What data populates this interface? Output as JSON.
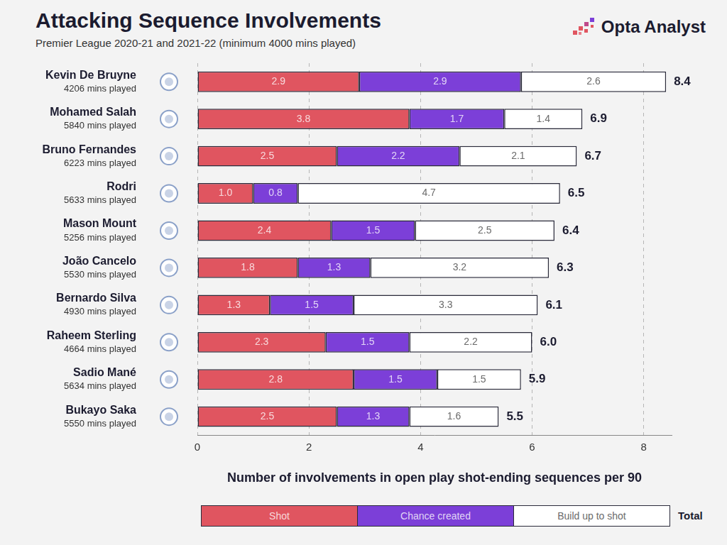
{
  "chart_data": {
    "type": "bar",
    "orientation": "horizontal",
    "stacked": true,
    "data_labels": true,
    "grid": true,
    "legend": "bottom",
    "title": "Attacking Sequence Involvements",
    "subtitle": "Premier League 2020-21 and 2021-22 (minimum 4000 mins played)",
    "source": "Opta Analyst",
    "x_label": "Number of involvements in open play shot-ending sequences per 90",
    "categories": [
      "Kevin De Bruyne",
      "Mohamed Salah",
      "Bruno Fernandes",
      "Rodri",
      "Mason Mount",
      "João Cancelo",
      "Bernardo Silva",
      "Raheem Sterling",
      "Sadio Mané",
      "Bukayo Saka"
    ],
    "category_notes": [
      "4206 mins played",
      "5840 mins played",
      "6223 mins played",
      "5633 mins played",
      "5256 mins played",
      "5530 mins played",
      "4930 mins played",
      "4664 mins played",
      "5634 mins played",
      "5550 mins played"
    ],
    "series": [
      {
        "name": "Shot",
        "color": "#e05560",
        "values": [
          2.9,
          3.8,
          2.5,
          1.0,
          2.4,
          1.8,
          1.3,
          2.3,
          2.8,
          2.5
        ],
        "value_labels": [
          "2.9",
          "3.8",
          "2.5",
          "1.0",
          "2.4",
          "1.8",
          "1.3",
          "2.3",
          "2.8",
          "2.5"
        ]
      },
      {
        "name": "Chance created",
        "color": "#7c3fd8",
        "values": [
          2.9,
          1.7,
          2.2,
          0.8,
          1.5,
          1.3,
          1.5,
          1.5,
          1.5,
          1.3
        ],
        "value_labels": [
          "2.9",
          "1.7",
          "2.2",
          "0.8",
          "1.5",
          "1.3",
          "1.5",
          "1.5",
          "1.5",
          "1.3"
        ]
      },
      {
        "name": "Build up to shot",
        "color": "#ffffff",
        "values": [
          2.6,
          1.4,
          2.1,
          4.7,
          2.5,
          3.2,
          3.3,
          2.2,
          1.5,
          1.6
        ],
        "value_labels": [
          "2.6",
          "1.4",
          "2.1",
          "4.7",
          "2.5",
          "3.2",
          "3.3",
          "2.2",
          "1.5",
          "1.6"
        ]
      }
    ],
    "totals": {
      "name": "Total",
      "values": [
        8.4,
        6.9,
        6.7,
        6.5,
        6.4,
        6.3,
        6.1,
        6.0,
        5.9,
        5.5
      ],
      "value_labels": [
        "8.4",
        "6.9",
        "6.7",
        "6.5",
        "6.4",
        "6.3",
        "6.1",
        "6.0",
        "5.9",
        "5.5"
      ]
    },
    "xlim": [
      0,
      8.5
    ],
    "xticks": [
      0,
      2,
      4,
      6,
      8
    ]
  }
}
